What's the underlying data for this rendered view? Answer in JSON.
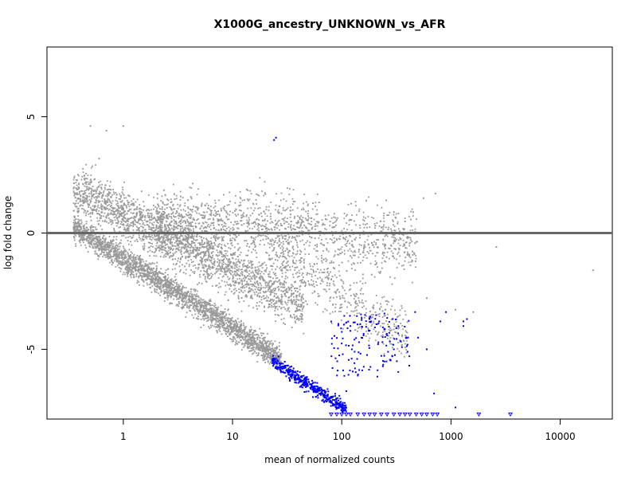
{
  "chart_data": {
    "type": "scatter",
    "title": "X1000G_ancestry_UNKNOWN_vs_AFR",
    "xlabel": "mean of normalized counts",
    "ylabel": "log fold change",
    "x_scale": "log10",
    "xlim": [
      0.2,
      30000
    ],
    "ylim": [
      -8,
      8
    ],
    "x_ticks": [
      {
        "value": 1,
        "label": "1"
      },
      {
        "value": 10,
        "label": "10"
      },
      {
        "value": 100,
        "label": "100"
      },
      {
        "value": 1000,
        "label": "1000"
      },
      {
        "value": 10000,
        "label": "10000"
      }
    ],
    "y_ticks": [
      {
        "value": -5,
        "label": "-5"
      },
      {
        "value": 0,
        "label": "0"
      },
      {
        "value": 5,
        "label": "5"
      }
    ],
    "reference_line": {
      "y": 0,
      "color": "#666666"
    },
    "grid": false,
    "legend": "none",
    "series": [
      {
        "color": "#999999",
        "marker": "dot",
        "approx_points": 6000,
        "description_bands": [
          {
            "x_range": [
              0.35,
              30
            ],
            "y_trend": "diagonal from 0 at x=0.4 to -5.5 at x=30",
            "spread": 0.6
          },
          {
            "x_range": [
              0.35,
              40
            ],
            "y_trend": "diagonal from 2 at x=0.5 to -3.5 at x=40",
            "spread": 1.2
          },
          {
            "x_range": [
              3,
              300
            ],
            "y_trend": "cloud around 0 to 1",
            "spread": 1.5
          }
        ],
        "sample_points": [
          [
            0.5,
            4.6
          ],
          [
            0.7,
            4.4
          ],
          [
            1.0,
            4.6
          ],
          [
            0.6,
            3.2
          ],
          [
            20000,
            -1.6
          ],
          [
            1100,
            -3.3
          ],
          [
            600,
            -2.8
          ],
          [
            250,
            -3.3
          ],
          [
            300,
            0.9
          ],
          [
            380,
            0.5
          ],
          [
            450,
            0.9
          ],
          [
            560,
            1.5
          ],
          [
            720,
            1.7
          ],
          [
            1600,
            -3.4
          ],
          [
            2600,
            -0.6
          ]
        ]
      },
      {
        "color": "#0000ff",
        "marker": "dot",
        "sample_points": [
          [
            24,
            4.0
          ],
          [
            25,
            4.1
          ],
          [
            25,
            -5.4
          ],
          [
            28,
            -5.6
          ],
          [
            32,
            -5.7
          ],
          [
            38,
            -6.0
          ],
          [
            45,
            -6.3
          ],
          [
            52,
            -6.5
          ],
          [
            60,
            -6.7
          ],
          [
            70,
            -7.0
          ],
          [
            80,
            -7.3
          ],
          [
            90,
            -7.5
          ],
          [
            95,
            -7.0
          ],
          [
            110,
            -6.8
          ],
          [
            120,
            -4.0
          ],
          [
            150,
            -3.5
          ],
          [
            180,
            -4.2
          ],
          [
            220,
            -3.8
          ],
          [
            260,
            -4.4
          ],
          [
            300,
            -5.0
          ],
          [
            330,
            -4.0
          ],
          [
            400,
            -4.8
          ],
          [
            470,
            -3.4
          ],
          [
            500,
            -4.5
          ],
          [
            600,
            -5.0
          ],
          [
            700,
            -6.9
          ],
          [
            800,
            -3.8
          ],
          [
            900,
            -3.4
          ],
          [
            1100,
            -7.5
          ],
          [
            1300,
            -3.8
          ],
          [
            1300,
            -4.0
          ],
          [
            1400,
            -3.7
          ]
        ],
        "censored_points_marker": "triangle-down",
        "censored_y": -7.8,
        "censored_x": [
          80,
          90,
          100,
          110,
          120,
          140,
          160,
          180,
          200,
          230,
          260,
          300,
          340,
          380,
          420,
          480,
          540,
          600,
          680,
          750,
          1800,
          3500
        ]
      }
    ]
  }
}
